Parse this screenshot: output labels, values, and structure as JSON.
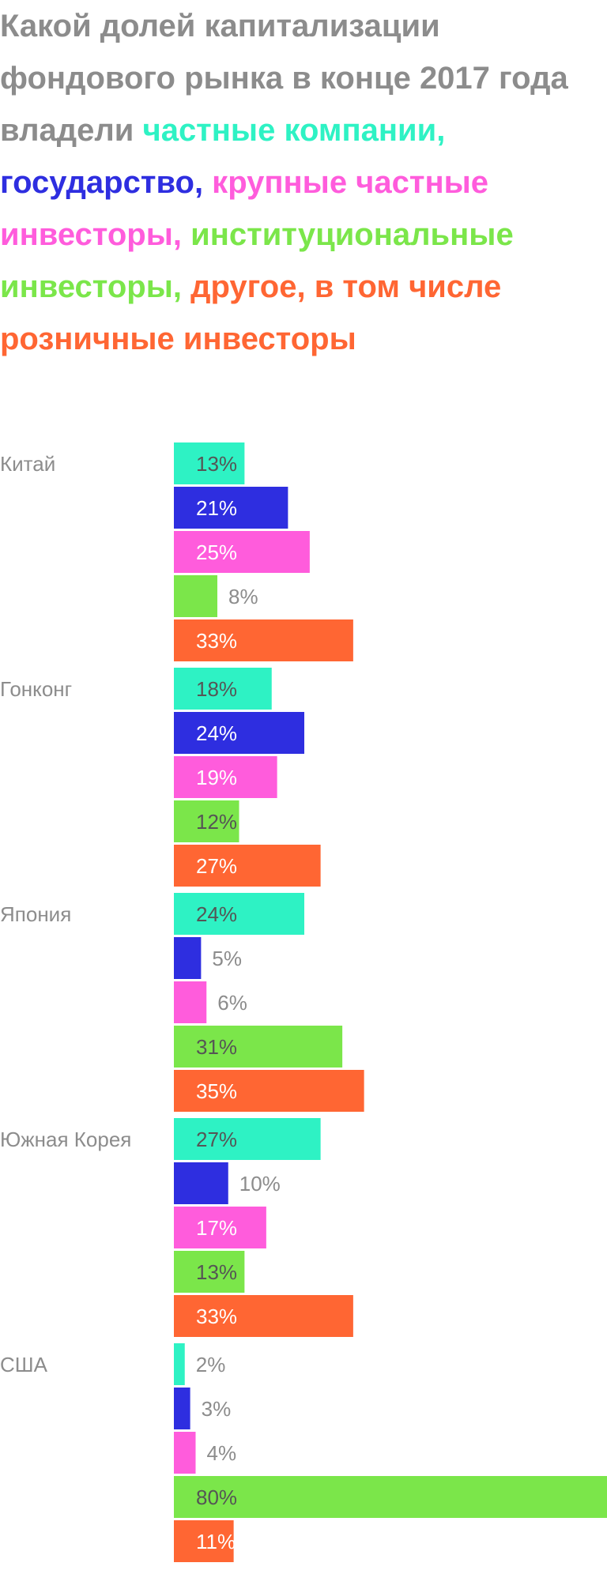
{
  "title": {
    "lead": "Какой долей капитализации фондового рынка в конце 2017 года владели ",
    "parts": [
      {
        "text": "частные компании",
        "color": "#2ef2c4",
        "sep": ", "
      },
      {
        "text": "государство",
        "color": "#2e2ee0",
        "sep": ", "
      },
      {
        "text": "крупные частные инвесторы",
        "color": "#ff5cdc",
        "sep": ", "
      },
      {
        "text": "институциональные инвесторы",
        "color": "#7be64a",
        "sep": ", "
      },
      {
        "text": "другое, в том числе розничные инвесторы",
        "color": "#ff6633",
        "sep": ""
      }
    ]
  },
  "chart_data": {
    "type": "bar",
    "orientation": "horizontal",
    "categories": [
      "Китай",
      "Гонконг",
      "Япония",
      "Южная Корея",
      "США"
    ],
    "series": [
      {
        "name": "частные компании",
        "color": "#2ef2c4",
        "values": [
          13,
          18,
          24,
          27,
          2
        ]
      },
      {
        "name": "государство",
        "color": "#2e2ee0",
        "values": [
          21,
          24,
          5,
          10,
          3
        ]
      },
      {
        "name": "крупные частные инвесторы",
        "color": "#ff5cdc",
        "values": [
          25,
          19,
          6,
          17,
          4
        ]
      },
      {
        "name": "институциональные инвесторы",
        "color": "#7be64a",
        "values": [
          8,
          12,
          31,
          13,
          80
        ]
      },
      {
        "name": "другое, в том числе розничные инвесторы",
        "color": "#ff6633",
        "values": [
          33,
          27,
          35,
          33,
          11
        ]
      }
    ],
    "value_suffix": "%",
    "xlim": [
      0,
      80
    ],
    "grid": false,
    "legend": "in title"
  }
}
